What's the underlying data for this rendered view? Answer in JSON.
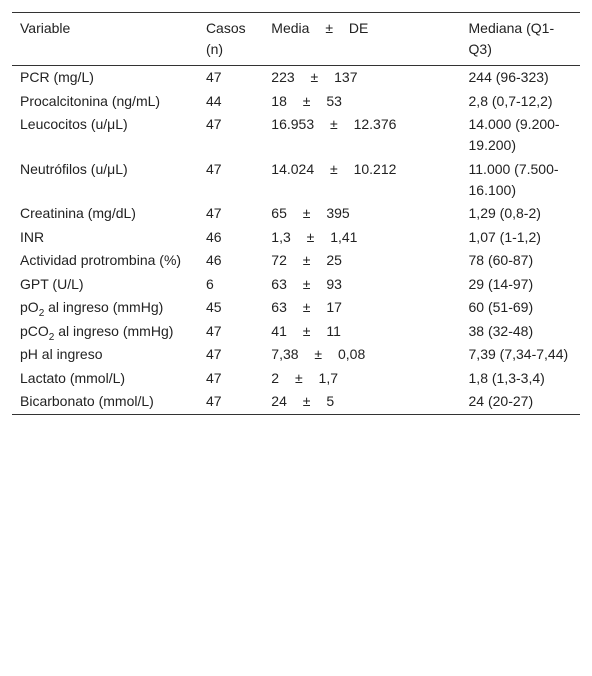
{
  "table": {
    "header": [
      "Variable",
      "Casos (n)",
      "Media ± DE",
      "Mediana (Q1-Q3)"
    ],
    "rows": [
      [
        "PCR (mg/L)",
        "47",
        "223 ± 137",
        "244 (96-323)"
      ],
      [
        "Procalcitonina (ng/mL)",
        "44",
        "18 ± 53",
        "2,8 (0,7-12,2)"
      ],
      [
        "Leucocitos (u/μL)",
        "47",
        "16.953 ± 12.376",
        "14.000 (9.200-19.200)"
      ],
      [
        "Neutrófilos (u/μL)",
        "47",
        "14.024 ± 10.212",
        "11.000 (7.500-16.100)"
      ],
      [
        "Creatinina (mg/dL)",
        "47",
        "65 ± 395",
        "1,29 (0,8-2)"
      ],
      [
        "INR",
        "46",
        "1,3 ± 1,41",
        "1,07 (1-1,2)"
      ],
      [
        "Actividad protrombina (%)",
        "46",
        "72 ± 25",
        "78 (60-87)"
      ],
      [
        "GPT (U/L)",
        "6",
        "63 ± 93",
        "29 (14-97)"
      ],
      [
        [
          "pO",
          "2",
          " al ingreso (mmHg)"
        ],
        "45",
        "63 ± 17",
        "60 (51-69)"
      ],
      [
        [
          "pCO",
          "2",
          " al ingreso (mmHg)"
        ],
        "47",
        "41 ± 11",
        "38 (32-48)"
      ],
      [
        "pH al ingreso",
        "47",
        "7,38 ± 0,08",
        "7,39 (7,34-7,44)"
      ],
      [
        "Lactato (mmol/L)",
        "47",
        "2 ± 1,7",
        "1,8 (1,3-3,4)"
      ],
      [
        "Bicarbonato (mmol/L)",
        "47",
        "24 ± 5",
        "24 (20-27)"
      ]
    ]
  }
}
